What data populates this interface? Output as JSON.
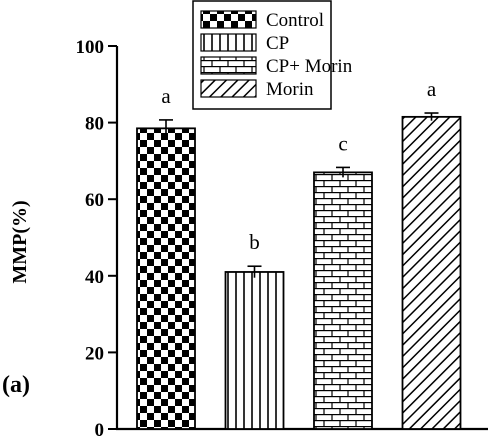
{
  "chart_data": {
    "type": "bar",
    "panel_label": "(a)",
    "ylabel": "MMP(%)",
    "ylim": [
      0,
      100
    ],
    "yticks": [
      0,
      20,
      40,
      60,
      80,
      100
    ],
    "categories": [
      "Control",
      "CP",
      "CP+ Morin",
      "Morin"
    ],
    "values": [
      78.5,
      41,
      67,
      81.5
    ],
    "errors": [
      2.2,
      1.5,
      1.3,
      1.0
    ],
    "significance": [
      "a",
      "b",
      "c",
      "a"
    ],
    "patterns": [
      "checkerboard",
      "vertical-lines",
      "brick",
      "diagonal-lines"
    ],
    "grid": false,
    "legend": {
      "placement": "top",
      "entries": [
        "Control",
        "CP",
        "CP+ Morin",
        "Morin"
      ]
    }
  }
}
